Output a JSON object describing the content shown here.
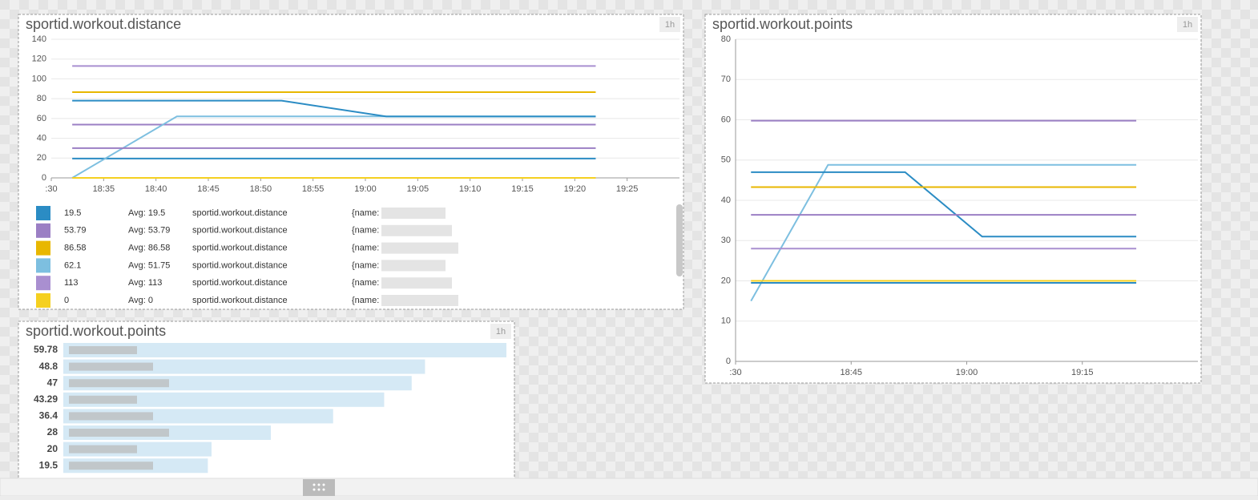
{
  "chart_data": [
    {
      "type": "line",
      "title": "sportid.workout.distance",
      "badge": "1h",
      "grid": true,
      "x": [
        "18:32",
        "18:42",
        "18:52",
        "19:02",
        "19:12",
        "19:22"
      ],
      "xlim": [
        "18:30",
        "19:30"
      ],
      "xticks": [
        {
          "value": "18:30",
          "label": ":30"
        },
        "18:35",
        "18:40",
        "18:45",
        "18:50",
        "18:55",
        "19:00",
        "19:05",
        "19:10",
        "19:15",
        "19:20",
        "19:25"
      ],
      "ylim": [
        0,
        140
      ],
      "yticks": [
        0,
        20,
        40,
        60,
        80,
        100,
        120,
        140
      ],
      "series": [
        {
          "color": "#2b8cc4",
          "values": [
            19.5,
            19.5,
            19.5,
            19.5,
            19.5,
            19.5
          ]
        },
        {
          "color": "#9b7fc4",
          "values": [
            53.79,
            53.79,
            53.79,
            53.79,
            53.79,
            53.79
          ]
        },
        {
          "color": "#e8b700",
          "values": [
            86.58,
            86.58,
            86.58,
            86.58,
            86.58,
            86.58
          ]
        },
        {
          "color": "#7dbfe0",
          "values": [
            0,
            62.1,
            62.1,
            62.1,
            62.1,
            62.1
          ]
        },
        {
          "color": "#a98fd0",
          "values": [
            113,
            113,
            113,
            113,
            113,
            113
          ]
        },
        {
          "color": "#f5d020",
          "values": [
            0,
            0,
            0,
            0,
            0,
            0
          ]
        },
        {
          "color": "#2b8cc4",
          "values": [
            78,
            78,
            78,
            62,
            62,
            62
          ]
        },
        {
          "color": "#9b7fc4",
          "values": [
            30,
            30,
            30,
            30,
            30,
            30
          ]
        }
      ],
      "legend": [
        {
          "color": "#2b8cc4",
          "value": "19.5",
          "avg": "Avg: 19.5",
          "metric": "sportid.workout.distance",
          "tag": "{name:"
        },
        {
          "color": "#9b7fc4",
          "value": "53.79",
          "avg": "Avg: 53.79",
          "metric": "sportid.workout.distance",
          "tag": "{name:"
        },
        {
          "color": "#e8b700",
          "value": "86.58",
          "avg": "Avg: 86.58",
          "metric": "sportid.workout.distance",
          "tag": "{name:"
        },
        {
          "color": "#7dbfe0",
          "value": "62.1",
          "avg": "Avg: 51.75",
          "metric": "sportid.workout.distance",
          "tag": "{name:"
        },
        {
          "color": "#a98fd0",
          "value": "113",
          "avg": "Avg: 113",
          "metric": "sportid.workout.distance",
          "tag": "{name:"
        },
        {
          "color": "#f5d020",
          "value": "0",
          "avg": "Avg: 0",
          "metric": "sportid.workout.distance",
          "tag": "{name:"
        }
      ]
    },
    {
      "type": "bar",
      "title": "sportid.workout.points",
      "badge": "1h",
      "color": "#d5e9f5",
      "values": [
        59.78,
        48.8,
        47,
        43.29,
        36.4,
        28,
        20,
        19.5
      ]
    },
    {
      "type": "line",
      "title": "sportid.workout.points",
      "badge": "1h",
      "grid": true,
      "x": [
        "18:32",
        "18:42",
        "18:52",
        "19:02",
        "19:12",
        "19:22"
      ],
      "xlim": [
        "18:30",
        "19:30"
      ],
      "xticks": [
        {
          "value": "18:30",
          "label": ":30"
        },
        "18:45",
        "19:00",
        "19:15"
      ],
      "ylim": [
        0,
        80
      ],
      "yticks": [
        0,
        10,
        20,
        30,
        40,
        50,
        60,
        70,
        80
      ],
      "series": [
        {
          "color": "#9b7fc4",
          "values": [
            59.78,
            59.78,
            59.78,
            59.78,
            59.78,
            59.78
          ]
        },
        {
          "color": "#7dbfe0",
          "values": [
            15,
            48.8,
            48.8,
            48.8,
            48.8,
            48.8
          ]
        },
        {
          "color": "#2b8cc4",
          "values": [
            47,
            47,
            47,
            31,
            31,
            31
          ]
        },
        {
          "color": "#e8b700",
          "values": [
            43.29,
            43.29,
            43.29,
            43.29,
            43.29,
            43.29
          ]
        },
        {
          "color": "#9b7fc4",
          "values": [
            36.4,
            36.4,
            36.4,
            36.4,
            36.4,
            36.4
          ]
        },
        {
          "color": "#a98fd0",
          "values": [
            28,
            28,
            28,
            28,
            28,
            28
          ]
        },
        {
          "color": "#f5d020",
          "values": [
            20,
            20,
            20,
            20,
            20,
            20
          ]
        },
        {
          "color": "#2b8cc4",
          "values": [
            19.5,
            19.5,
            19.5,
            19.5,
            19.5,
            19.5
          ]
        }
      ]
    }
  ]
}
